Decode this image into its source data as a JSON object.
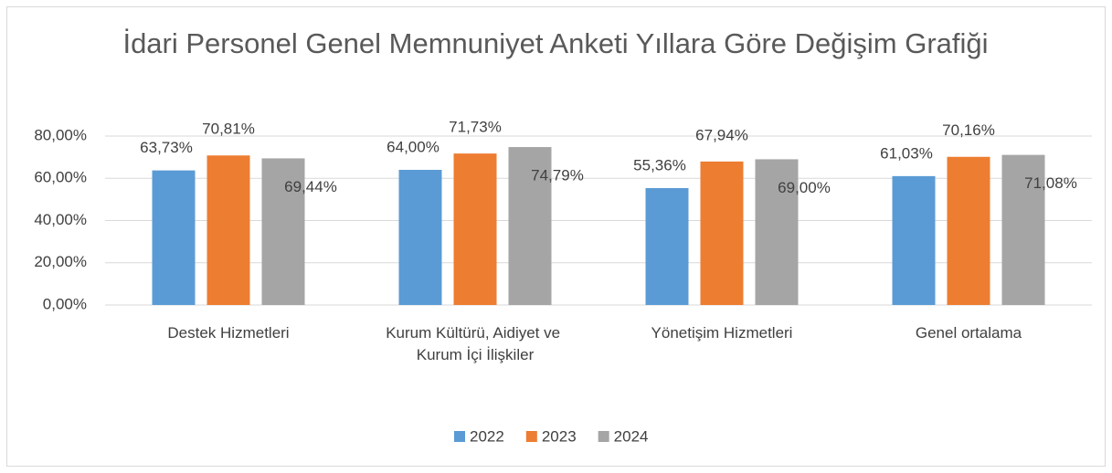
{
  "chart_data": {
    "type": "bar",
    "title": "İdari Personel Genel Memnuniyet Anketi Yıllara Göre Değişim Grafiği",
    "categories": [
      "Destek Hizmetleri",
      "Kurum Kültürü, Aidiyet ve Kurum İçi İlişkiler",
      "Yönetişim Hizmetleri",
      "Genel ortalama"
    ],
    "series": [
      {
        "name": "2022",
        "color": "#5b9bd5",
        "values": [
          63.73,
          64.0,
          55.36,
          61.03
        ],
        "value_labels": [
          "63,73%",
          "64,00%",
          "55,36%",
          "61,03%"
        ]
      },
      {
        "name": "2023",
        "color": "#ed7d31",
        "values": [
          70.81,
          71.73,
          67.94,
          70.16
        ],
        "value_labels": [
          "70,81%",
          "71,73%",
          "67,94%",
          "70,16%"
        ]
      },
      {
        "name": "2024",
        "color": "#a5a5a5",
        "values": [
          69.44,
          74.79,
          69.0,
          71.08
        ],
        "value_labels": [
          "69,44%",
          "74,79%",
          "69,00%",
          "71,08%"
        ]
      }
    ],
    "ylim": [
      0,
      80
    ],
    "yticks": [
      {
        "value": 0,
        "label": "0,00%"
      },
      {
        "value": 20,
        "label": "20,00%"
      },
      {
        "value": 40,
        "label": "40,00%"
      },
      {
        "value": 60,
        "label": "60,00%"
      },
      {
        "value": 80,
        "label": "80,00%"
      }
    ],
    "grid": true,
    "legend": "bottom"
  }
}
